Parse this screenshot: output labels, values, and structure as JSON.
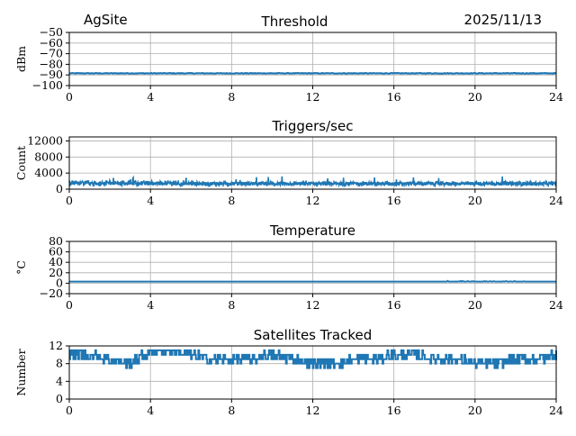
{
  "header": {
    "site": "AgSite",
    "date": "2025/11/13"
  },
  "colors": {
    "series": "#1f77b4",
    "grid": "#b0b0b0",
    "axis": "#000000"
  },
  "chart_data": [
    {
      "type": "line",
      "title": "Threshold",
      "xlabel": "",
      "ylabel": "dBm",
      "xlim": [
        0,
        24
      ],
      "ylim": [
        -100,
        -50
      ],
      "xticks": [
        "0",
        "4",
        "8",
        "12",
        "16",
        "20",
        "24"
      ],
      "yticks": [
        "−50",
        "−60",
        "−70",
        "−80",
        "−90",
        "−100"
      ],
      "grid": true,
      "series": [
        {
          "values_hours": [
            0,
            4,
            8,
            12,
            16,
            20,
            24
          ],
          "values": [
            -88.5,
            -88.5,
            -88.5,
            -88.5,
            -88.5,
            -88.5,
            -88.5
          ]
        }
      ]
    },
    {
      "type": "line",
      "title": "Triggers/sec",
      "xlabel": "",
      "ylabel": "Count",
      "xlim": [
        0,
        24
      ],
      "ylim": [
        0,
        13000
      ],
      "xticks": [
        "0",
        "4",
        "8",
        "12",
        "16",
        "20",
        "24"
      ],
      "yticks": [
        "12000",
        "8000",
        "4000",
        "0"
      ],
      "grid": true,
      "series": [
        {
          "baseline": 1200,
          "typical_peak": 2200,
          "max_spike": 3300
        }
      ]
    },
    {
      "type": "line",
      "title": "Temperature",
      "xlabel": "",
      "ylabel": "°C",
      "xlim": [
        0,
        24
      ],
      "ylim": [
        -20,
        80
      ],
      "xticks": [
        "0",
        "4",
        "8",
        "12",
        "16",
        "20",
        "24"
      ],
      "yticks": [
        "80",
        "60",
        "40",
        "20",
        "0",
        "−20"
      ],
      "grid": true,
      "series": [
        {
          "values_hours": [
            0,
            12,
            18.5,
            22.5,
            24
          ],
          "values": [
            3,
            3,
            3,
            3,
            3
          ]
        }
      ]
    },
    {
      "type": "line",
      "title": "Satellites Tracked",
      "xlabel": "",
      "ylabel": "Number",
      "xlim": [
        0,
        24
      ],
      "ylim": [
        0,
        12
      ],
      "xticks": [
        "0",
        "4",
        "8",
        "12",
        "16",
        "20",
        "24"
      ],
      "yticks": [
        "12",
        "8",
        "4",
        "0"
      ],
      "grid": true,
      "series": [
        {
          "values_hours": [
            0,
            1,
            2,
            3,
            4,
            5,
            6,
            7,
            8,
            9,
            10,
            11,
            12,
            13,
            14,
            15,
            16,
            17,
            18,
            19,
            20,
            21,
            22,
            23,
            24
          ],
          "values": [
            10,
            10,
            9,
            8,
            11,
            11,
            10,
            9,
            9,
            9,
            10,
            9,
            8,
            8,
            9,
            9,
            10,
            10,
            9,
            9,
            8,
            8,
            9,
            9,
            10
          ]
        }
      ]
    }
  ]
}
